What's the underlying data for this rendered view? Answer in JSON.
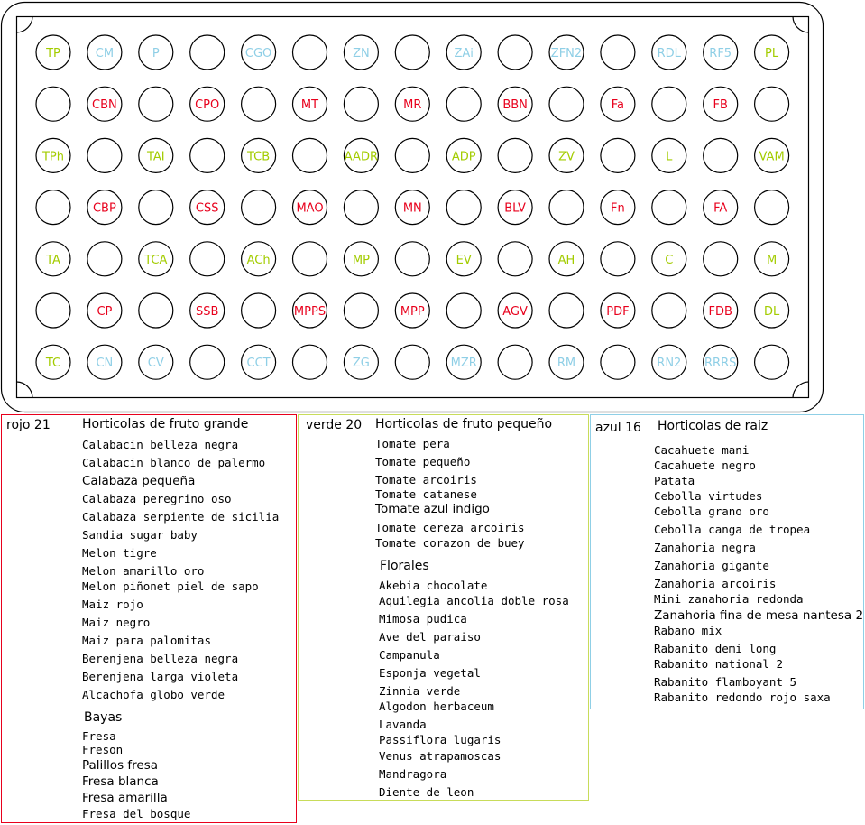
{
  "colors": {
    "red": "#e8001c",
    "green": "#a3cc00",
    "blue": "#8fcfe6",
    "tray_stroke": "#000000"
  },
  "tray": {
    "rows": [
      [
        [
          "TP",
          "green"
        ],
        [
          "CM",
          "blue"
        ],
        [
          "P",
          "blue"
        ],
        [
          "",
          ""
        ],
        [
          "CGO",
          "blue"
        ],
        [
          "",
          ""
        ],
        [
          "ZN",
          "blue"
        ],
        [
          "",
          ""
        ],
        [
          "ZAi",
          "blue"
        ],
        [
          "",
          ""
        ],
        [
          "ZFN2",
          "blue"
        ],
        [
          "",
          ""
        ],
        [
          "RDL",
          "blue"
        ],
        [
          "RF5",
          "blue"
        ],
        [
          "PL",
          "green"
        ]
      ],
      [
        [
          "",
          ""
        ],
        [
          "CBN",
          "red"
        ],
        [
          "",
          ""
        ],
        [
          "CPO",
          "red"
        ],
        [
          "",
          ""
        ],
        [
          "MT",
          "red"
        ],
        [
          "",
          ""
        ],
        [
          "MR",
          "red"
        ],
        [
          "",
          ""
        ],
        [
          "BBN",
          "red"
        ],
        [
          "",
          ""
        ],
        [
          "Fa",
          "red"
        ],
        [
          "",
          ""
        ],
        [
          "FB",
          "red"
        ],
        [
          "",
          ""
        ]
      ],
      [
        [
          "TPh",
          "green"
        ],
        [
          "",
          ""
        ],
        [
          "TAI",
          "green"
        ],
        [
          "",
          ""
        ],
        [
          "TCB",
          "green"
        ],
        [
          "",
          ""
        ],
        [
          "AADR",
          "green"
        ],
        [
          "",
          ""
        ],
        [
          "ADP",
          "green"
        ],
        [
          "",
          ""
        ],
        [
          "ZV",
          "green"
        ],
        [
          "",
          ""
        ],
        [
          "L",
          "green"
        ],
        [
          "",
          ""
        ],
        [
          "VAM",
          "green"
        ]
      ],
      [
        [
          "",
          ""
        ],
        [
          "CBP",
          "red"
        ],
        [
          "",
          ""
        ],
        [
          "CSS",
          "red"
        ],
        [
          "",
          ""
        ],
        [
          "MAO",
          "red"
        ],
        [
          "",
          ""
        ],
        [
          "MN",
          "red"
        ],
        [
          "",
          ""
        ],
        [
          "BLV",
          "red"
        ],
        [
          "",
          ""
        ],
        [
          "Fn",
          "red"
        ],
        [
          "",
          ""
        ],
        [
          "FA",
          "red"
        ],
        [
          "",
          ""
        ]
      ],
      [
        [
          "TA",
          "green"
        ],
        [
          "",
          ""
        ],
        [
          "TCA",
          "green"
        ],
        [
          "",
          ""
        ],
        [
          "ACh",
          "green"
        ],
        [
          "",
          ""
        ],
        [
          "MP",
          "green"
        ],
        [
          "",
          ""
        ],
        [
          "EV",
          "green"
        ],
        [
          "",
          ""
        ],
        [
          "AH",
          "green"
        ],
        [
          "",
          ""
        ],
        [
          "C",
          "green"
        ],
        [
          "",
          ""
        ],
        [
          "M",
          "green"
        ]
      ],
      [
        [
          "",
          ""
        ],
        [
          "CP",
          "red"
        ],
        [
          "",
          ""
        ],
        [
          "SSB",
          "red"
        ],
        [
          "",
          ""
        ],
        [
          "MPPS",
          "red"
        ],
        [
          "",
          ""
        ],
        [
          "MPP",
          "red"
        ],
        [
          "",
          ""
        ],
        [
          "AGV",
          "red"
        ],
        [
          "",
          ""
        ],
        [
          "PDF",
          "red"
        ],
        [
          "",
          ""
        ],
        [
          "FDB",
          "red"
        ],
        [
          "DL",
          "green"
        ]
      ],
      [
        [
          "TC",
          "green"
        ],
        [
          "CN",
          "blue"
        ],
        [
          "CV",
          "blue"
        ],
        [
          "",
          ""
        ],
        [
          "CCT",
          "blue"
        ],
        [
          "",
          ""
        ],
        [
          "ZG",
          "blue"
        ],
        [
          "",
          ""
        ],
        [
          "MZR",
          "blue"
        ],
        [
          "",
          ""
        ],
        [
          "RM",
          "blue"
        ],
        [
          "",
          ""
        ],
        [
          "RN2",
          "blue"
        ],
        [
          "RRRS",
          "blue"
        ],
        [
          "",
          ""
        ]
      ]
    ]
  },
  "panels": {
    "red": {
      "count_label": "rojo 21",
      "title": "Horticolas de fruto grande",
      "items": [
        "Calabacin belleza negra",
        "Calabacin blanco de palermo",
        "Calabaza pequeña",
        "Calabaza peregrino oso",
        "Calabaza serpiente de sicilia",
        "Sandia sugar baby",
        "Melon tigre",
        "Melon amarillo oro",
        "Melon piñonet piel de sapo",
        "Maiz rojo",
        "Maiz negro",
        "Maiz para palomitas",
        "Berenjena belleza negra",
        "Berenjena larga violeta",
        "Alcachofa globo verde"
      ],
      "subtitle": "Bayas",
      "sub_items": [
        "Fresa",
        "Freson",
        "Palillos fresa",
        "Fresa blanca",
        "Fresa amarilla",
        "Fresa del bosque"
      ]
    },
    "green": {
      "count_label": "verde 20",
      "title": "Horticolas de fruto pequeño",
      "items": [
        "Tomate pera",
        "Tomate pequeño",
        "Tomate arcoiris",
        "Tomate catanese",
        "Tomate azul indigo",
        "Tomate cereza arcoiris",
        "Tomate corazon de buey"
      ],
      "subtitle": "Florales",
      "sub_items": [
        "Akebia chocolate",
        "Aquilegia ancolia doble rosa",
        "Mimosa pudica",
        "Ave del paraiso",
        "Campanula",
        "Esponja vegetal",
        "Zinnia verde",
        "Algodon herbaceum",
        "Lavanda",
        "Passiflora lugaris",
        "Venus atrapamoscas",
        "Mandragora",
        "Diente de leon"
      ]
    },
    "blue": {
      "count_label": "azul 16",
      "title": "Horticolas de raiz",
      "items": [
        "Cacahuete mani",
        "Cacahuete negro",
        "Patata",
        "Cebolla virtudes",
        "Cebolla grano oro",
        "Cebolla canga de tropea",
        "Zanahoria negra",
        "Zanahoria gigante",
        "Zanahoria arcoiris",
        "Mini zanahoria redonda",
        "Zanahoria fina de mesa nantesa 2",
        "Rabano mix",
        "Rabanito demi long",
        "Rabanito national 2",
        "Rabanito flamboyant 5",
        "Rabanito redondo rojo saxa"
      ]
    }
  }
}
